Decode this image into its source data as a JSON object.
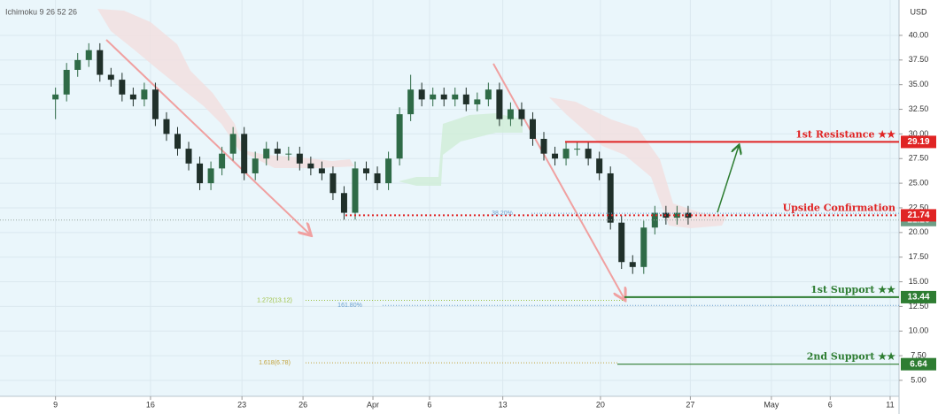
{
  "chart_data": {
    "type": "candlestick",
    "indicator_label": "Ichimoku 9 26 52 26",
    "currency": "USD",
    "up_color": "#2f6b47",
    "down_color": "#20302a",
    "grid": true,
    "xlim": [
      -5,
      76
    ],
    "ylim": [
      3.38,
      42.87
    ],
    "xticks": [
      {
        "value": 0,
        "label": "9"
      },
      {
        "value": 8.56,
        "label": "16"
      },
      {
        "value": 16.8,
        "label": "23"
      },
      {
        "value": 22.3,
        "label": "26"
      },
      {
        "value": 28.6,
        "label": "Apr"
      },
      {
        "value": 33.7,
        "label": "6"
      },
      {
        "value": 40.3,
        "label": "13"
      },
      {
        "value": 49.1,
        "label": "20"
      },
      {
        "value": 57.2,
        "label": "27"
      },
      {
        "value": 64.5,
        "label": "May"
      },
      {
        "value": 69.8,
        "label": "6"
      },
      {
        "value": 75.2,
        "label": "11"
      }
    ],
    "yticks": [
      {
        "value": 5,
        "label": "5.00"
      },
      {
        "value": 7.5,
        "label": "7.50"
      },
      {
        "value": 10,
        "label": "10.00"
      },
      {
        "value": 12.5,
        "label": "12.50"
      },
      {
        "value": 15,
        "label": "15.00"
      },
      {
        "value": 17.5,
        "label": "17.50"
      },
      {
        "value": 20,
        "label": "20.00"
      },
      {
        "value": 22.5,
        "label": "22.50"
      },
      {
        "value": 25,
        "label": "25.00"
      },
      {
        "value": 27.5,
        "label": "27.50"
      },
      {
        "value": 30,
        "label": "30.00"
      },
      {
        "value": 32.5,
        "label": "32.50"
      },
      {
        "value": 35,
        "label": "35.00"
      },
      {
        "value": 37.5,
        "label": "37.50"
      },
      {
        "value": 40,
        "label": "40.00"
      }
    ],
    "open": [
      33.5,
      34.0,
      36.5,
      37.5,
      38.5,
      36.0,
      35.5,
      34.0,
      33.5,
      34.5,
      31.5,
      30.0,
      28.5,
      27.0,
      25.0,
      26.5,
      28.0,
      30.0,
      26.0,
      27.5,
      28.5,
      28.0,
      28.0,
      27.0,
      26.5,
      26.0,
      24.0,
      22.0,
      26.5,
      26.0,
      25.0,
      27.5,
      32.0,
      34.5,
      33.5,
      34.0,
      33.5,
      34.0,
      33.0,
      33.5,
      34.5,
      31.5,
      32.5,
      31.5,
      29.5,
      28.0,
      27.5,
      28.5,
      28.5,
      27.5,
      26.0,
      21.0,
      17.0,
      16.5,
      20.5,
      22.0,
      21.5,
      22.0
    ],
    "high": [
      34.7,
      37.2,
      38.2,
      39.2,
      39.2,
      36.7,
      36.2,
      34.7,
      35.2,
      35.2,
      32.2,
      30.7,
      29.2,
      27.7,
      27.2,
      28.7,
      30.7,
      30.7,
      28.2,
      29.2,
      29.2,
      28.7,
      28.7,
      27.7,
      27.2,
      26.7,
      24.7,
      27.2,
      27.2,
      26.7,
      28.2,
      32.7,
      36.0,
      35.2,
      34.7,
      34.7,
      34.7,
      34.7,
      34.2,
      35.2,
      35.2,
      33.2,
      33.2,
      32.2,
      30.2,
      28.7,
      29.2,
      29.2,
      29.2,
      28.2,
      26.7,
      21.7,
      17.7,
      21.2,
      22.7,
      22.7,
      22.7,
      22.7
    ],
    "low": [
      31.5,
      33.3,
      35.8,
      36.8,
      35.3,
      34.8,
      33.3,
      32.8,
      32.8,
      30.8,
      29.3,
      27.8,
      26.3,
      24.3,
      24.3,
      25.8,
      27.3,
      25.3,
      25.3,
      26.8,
      27.3,
      27.3,
      26.3,
      25.8,
      25.3,
      23.3,
      21.3,
      21.3,
      25.3,
      24.3,
      24.3,
      26.8,
      31.3,
      32.8,
      32.8,
      32.8,
      32.8,
      32.3,
      32.3,
      32.8,
      30.8,
      30.8,
      30.8,
      28.8,
      27.3,
      26.8,
      26.8,
      27.8,
      26.8,
      25.3,
      20.3,
      16.3,
      15.8,
      15.8,
      19.8,
      20.8,
      20.8,
      20.8
    ],
    "close": [
      34.0,
      36.5,
      37.5,
      38.5,
      36.0,
      35.5,
      34.0,
      33.5,
      34.5,
      31.5,
      30.0,
      28.5,
      27.0,
      25.0,
      26.5,
      28.0,
      30.0,
      26.0,
      27.5,
      28.5,
      28.0,
      28.0,
      27.0,
      26.5,
      26.0,
      24.0,
      22.0,
      26.5,
      26.0,
      25.0,
      27.5,
      32.0,
      34.5,
      33.5,
      34.0,
      33.5,
      34.0,
      33.0,
      33.5,
      34.5,
      31.5,
      32.5,
      31.5,
      29.5,
      28.0,
      27.5,
      28.5,
      28.5,
      27.5,
      26.0,
      21.0,
      17.0,
      16.5,
      20.5,
      22.0,
      21.5,
      22.0,
      21.5
    ],
    "levels": [
      {
        "label": "1st Resistance ★★",
        "value": 29.19,
        "color": "#e02424",
        "style": "solid"
      },
      {
        "label": "Upside Confirmation",
        "value": 21.74,
        "color": "#e02424",
        "style": "dotted"
      },
      {
        "label": "1st Support ★★",
        "value": 13.44,
        "color": "#2e7d32",
        "style": "solid"
      },
      {
        "label": "2nd Support ★★",
        "value": 6.64,
        "color": "#2e7d32",
        "style": "thin"
      }
    ],
    "last_price": 21.26,
    "last_price_color": "#6f9e86",
    "fib_labels": [
      {
        "label": "38.20%",
        "value": 21.95,
        "color": "#6a9fcf"
      },
      {
        "label": "1.272(13.12)",
        "value": 13.12,
        "color": "#9bbf3a"
      },
      {
        "label": "161.80%",
        "value": 12.6,
        "color": "#6a9fcf"
      },
      {
        "label": "1.618(6.78)",
        "value": 6.78,
        "color": "#c2a23a"
      }
    ]
  }
}
